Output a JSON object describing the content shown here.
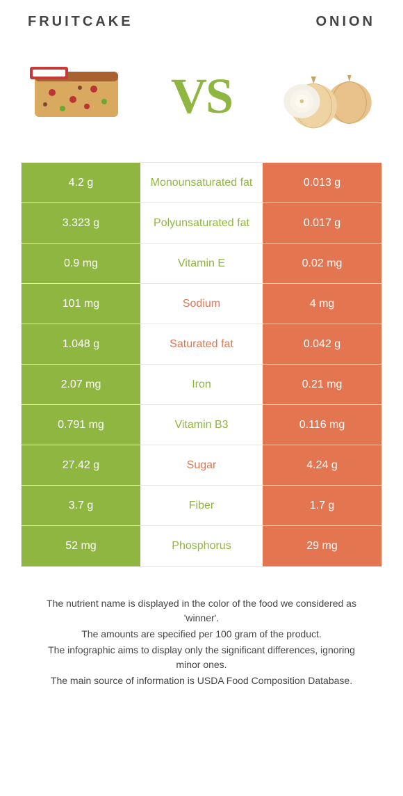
{
  "colors": {
    "left_bg": "#8fb640",
    "right_bg": "#e47551",
    "mid_left_text": "#8fb640",
    "mid_right_text": "#e47551",
    "vs": "#8fb640"
  },
  "header": {
    "left": "Fruitcake",
    "right": "Onion",
    "vs": "VS"
  },
  "rows": [
    {
      "left": "4.2 g",
      "mid": "Monounsaturated fat",
      "right": "0.013 g",
      "winner": "left"
    },
    {
      "left": "3.323 g",
      "mid": "Polyunsaturated fat",
      "right": "0.017 g",
      "winner": "left"
    },
    {
      "left": "0.9 mg",
      "mid": "Vitamin E",
      "right": "0.02 mg",
      "winner": "left"
    },
    {
      "left": "101 mg",
      "mid": "Sodium",
      "right": "4 mg",
      "winner": "right"
    },
    {
      "left": "1.048 g",
      "mid": "Saturated fat",
      "right": "0.042 g",
      "winner": "right"
    },
    {
      "left": "2.07 mg",
      "mid": "Iron",
      "right": "0.21 mg",
      "winner": "left"
    },
    {
      "left": "0.791 mg",
      "mid": "Vitamin B3",
      "right": "0.116 mg",
      "winner": "left"
    },
    {
      "left": "27.42 g",
      "mid": "Sugar",
      "right": "4.24 g",
      "winner": "right"
    },
    {
      "left": "3.7 g",
      "mid": "Fiber",
      "right": "1.7 g",
      "winner": "left"
    },
    {
      "left": "52 mg",
      "mid": "Phosphorus",
      "right": "29 mg",
      "winner": "left"
    }
  ],
  "footnotes": {
    "line1": "The nutrient name is displayed in the color of the food we considered as 'winner'.",
    "line2": "The amounts are specified per 100 gram of the product.",
    "line3": "The infographic aims to display only the significant differences, ignoring minor ones.",
    "line4": "The main source of information is USDA Food Composition Database."
  }
}
